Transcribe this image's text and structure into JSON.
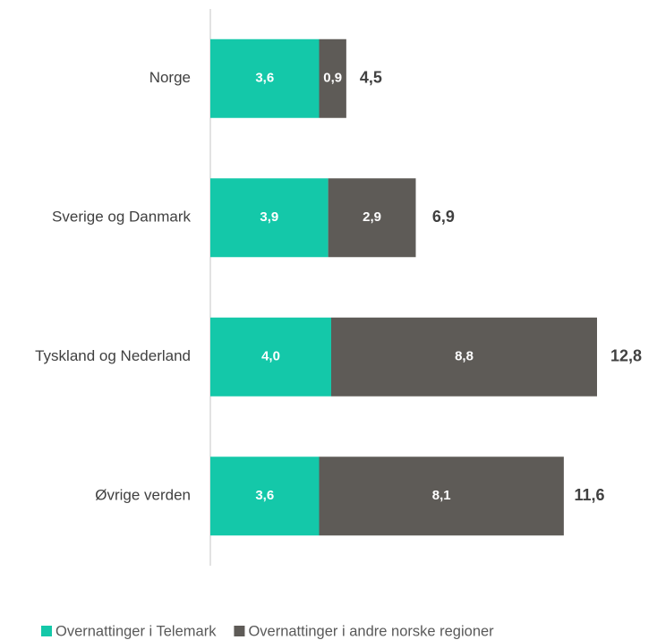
{
  "chart_data": {
    "type": "stacked-bar-horizontal",
    "categories": [
      "Norge",
      "Sverige og Danmark",
      "Tyskland og Nederland",
      "Øvrige verden"
    ],
    "series": [
      {
        "name": "Overnattinger i Telemark",
        "color": "#14c8a9",
        "values": [
          3.6,
          3.9,
          4.0,
          3.6
        ],
        "value_labels": [
          "3,6",
          "3,9",
          "4,0",
          "3,6"
        ]
      },
      {
        "name": "Overnattinger i andre norske regioner",
        "color": "#5e5b57",
        "values": [
          0.9,
          2.9,
          8.8,
          8.1
        ],
        "value_labels": [
          "0,9",
          "2,9",
          "8,8",
          "8,1"
        ]
      }
    ],
    "totals": [
      4.5,
      6.9,
      12.8,
      11.6
    ],
    "total_labels": [
      "4,5",
      "6,9",
      "12,8",
      "11,6"
    ],
    "xlim": [
      0,
      14
    ],
    "legend": "bottom"
  }
}
